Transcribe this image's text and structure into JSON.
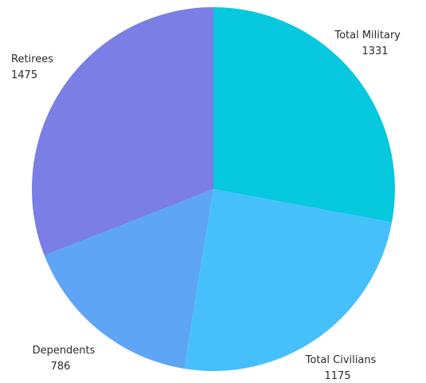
{
  "chart_data": {
    "type": "pie",
    "title": "",
    "slices": [
      {
        "label": "Total Military",
        "value": 1331,
        "value_label": "1331",
        "color": "#06C8DE"
      },
      {
        "label": "Total Civilians",
        "value": 1175,
        "value_label": "1175",
        "color": "#46C0FB"
      },
      {
        "label": "Dependents",
        "value": 786,
        "value_label": "786",
        "color": "#5EA5F6"
      },
      {
        "label": "Retirees",
        "value": 1475,
        "value_label": "1475",
        "color": "#7A7EE5"
      }
    ]
  }
}
